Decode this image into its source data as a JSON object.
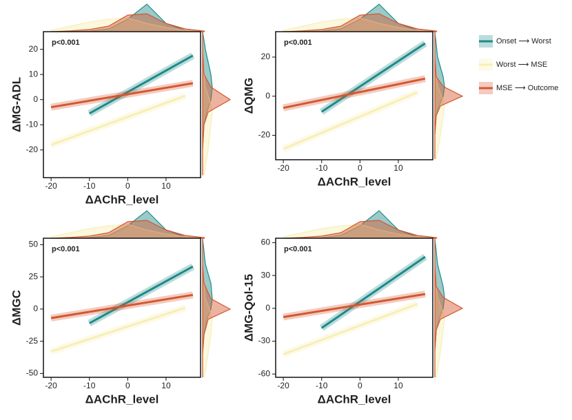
{
  "chart_data": [
    {
      "type": "line",
      "ylabel": "ΔMG-ADL",
      "xlabel": "ΔAChR_level",
      "annotation": "p<0.001",
      "xlim": [
        -22,
        19
      ],
      "xticks": [
        -20,
        -10,
        0,
        10
      ],
      "ylim": [
        -31,
        27
      ],
      "yticks": [
        -20,
        -10,
        0,
        10,
        20
      ],
      "series": [
        {
          "name": "Onset ⟶ Worst",
          "color": "#1e8a88",
          "x": [
            -10,
            17
          ],
          "values": [
            -5.5,
            17.5
          ]
        },
        {
          "name": "Worst ⟶ MSE",
          "color": "#f7efb6",
          "x": [
            -20,
            15
          ],
          "values": [
            -18,
            1.5
          ]
        },
        {
          "name": "MSE ⟶ Outcome",
          "color": "#d4572f",
          "x": [
            -20,
            17
          ],
          "values": [
            -3,
            6.5
          ]
        }
      ],
      "density_x": {
        "grid": [
          -20,
          -15,
          -10,
          -5,
          0,
          5,
          10,
          15,
          20
        ],
        "values": [
          [
            0,
            0,
            0.02,
            0.1,
            0.45,
            1,
            0.3,
            0.05,
            0
          ],
          [
            0.05,
            0.2,
            0.35,
            0.45,
            0.5,
            0.3,
            0.15,
            0.05,
            0
          ],
          [
            0,
            0.03,
            0.08,
            0.2,
            0.6,
            0.65,
            0.3,
            0.1,
            0.02
          ]
        ]
      },
      "density_y": {
        "grid": [
          -30,
          -20,
          -10,
          -5,
          0,
          5,
          10,
          20,
          27
        ],
        "values": [
          [
            0,
            0,
            0.05,
            0.15,
            0.3,
            0.35,
            0.3,
            0.1,
            0
          ],
          [
            0.05,
            0.2,
            0.3,
            0.35,
            0.25,
            0.1,
            0.05,
            0,
            0
          ],
          [
            0,
            0,
            0.05,
            0.2,
            1,
            0.3,
            0.05,
            0,
            0
          ]
        ]
      }
    },
    {
      "type": "line",
      "ylabel": "ΔQMG",
      "xlabel": "ΔAChR_level",
      "annotation": "p<0.001",
      "xlim": [
        -22,
        19
      ],
      "xticks": [
        -20,
        -10,
        0,
        10
      ],
      "ylim": [
        -32.5,
        33
      ],
      "yticks": [
        -20,
        0,
        20
      ],
      "series": [
        {
          "color": "#1e8a88",
          "x": [
            -10,
            17
          ],
          "values": [
            -8,
            27
          ]
        },
        {
          "color": "#f7efb6",
          "x": [
            -20,
            15
          ],
          "values": [
            -27,
            2
          ]
        },
        {
          "color": "#d4572f",
          "x": [
            -20,
            17
          ],
          "values": [
            -6,
            9
          ]
        }
      ],
      "density_x": {
        "grid": [
          -20,
          -15,
          -10,
          -5,
          0,
          5,
          10,
          15,
          20
        ],
        "values": [
          [
            0,
            0,
            0.02,
            0.1,
            0.45,
            1,
            0.3,
            0.05,
            0
          ],
          [
            0.05,
            0.2,
            0.35,
            0.45,
            0.5,
            0.3,
            0.15,
            0.05,
            0
          ],
          [
            0,
            0.03,
            0.08,
            0.2,
            0.6,
            0.65,
            0.3,
            0.1,
            0.02
          ]
        ]
      },
      "density_y": {
        "grid": [
          -32,
          -20,
          -10,
          -5,
          0,
          5,
          10,
          20,
          33
        ],
        "values": [
          [
            0,
            0,
            0.05,
            0.15,
            0.3,
            0.35,
            0.3,
            0.1,
            0
          ],
          [
            0.05,
            0.2,
            0.3,
            0.35,
            0.25,
            0.1,
            0.05,
            0,
            0
          ],
          [
            0,
            0,
            0.05,
            0.2,
            1,
            0.3,
            0.05,
            0,
            0
          ]
        ]
      }
    },
    {
      "type": "line",
      "ylabel": "ΔMGC",
      "xlabel": "ΔAChR_level",
      "annotation": "p<0.001",
      "xlim": [
        -22,
        19
      ],
      "xticks": [
        -20,
        -10,
        0,
        10
      ],
      "ylim": [
        -53,
        55
      ],
      "yticks": [
        -50,
        -25,
        0,
        25,
        50
      ],
      "series": [
        {
          "color": "#1e8a88",
          "x": [
            -10,
            17
          ],
          "values": [
            -11,
            33
          ]
        },
        {
          "color": "#f7efb6",
          "x": [
            -20,
            15
          ],
          "values": [
            -33,
            1
          ]
        },
        {
          "color": "#d4572f",
          "x": [
            -20,
            17
          ],
          "values": [
            -7,
            11
          ]
        }
      ],
      "density_x": {
        "grid": [
          -20,
          -15,
          -10,
          -5,
          0,
          5,
          10,
          15,
          20
        ],
        "values": [
          [
            0,
            0,
            0.02,
            0.1,
            0.45,
            1,
            0.3,
            0.05,
            0
          ],
          [
            0.05,
            0.2,
            0.35,
            0.45,
            0.5,
            0.3,
            0.15,
            0.05,
            0
          ],
          [
            0,
            0.03,
            0.08,
            0.2,
            0.6,
            0.65,
            0.3,
            0.1,
            0.02
          ]
        ]
      },
      "density_y": {
        "grid": [
          -53,
          -35,
          -20,
          -8,
          0,
          8,
          20,
          35,
          55
        ],
        "values": [
          [
            0,
            0,
            0.05,
            0.15,
            0.3,
            0.35,
            0.3,
            0.1,
            0
          ],
          [
            0.05,
            0.2,
            0.3,
            0.35,
            0.25,
            0.1,
            0.05,
            0,
            0
          ],
          [
            0,
            0,
            0.05,
            0.2,
            1,
            0.3,
            0.05,
            0,
            0
          ]
        ]
      }
    },
    {
      "type": "line",
      "ylabel": "ΔMG-Qol-15",
      "xlabel": "ΔAChR_level",
      "annotation": "p<0.001",
      "xlim": [
        -22,
        19
      ],
      "xticks": [
        -20,
        -10,
        0,
        10
      ],
      "ylim": [
        -63,
        64
      ],
      "yticks": [
        -60,
        -30,
        0,
        30,
        60
      ],
      "series": [
        {
          "color": "#1e8a88",
          "x": [
            -10,
            17
          ],
          "values": [
            -18,
            47
          ]
        },
        {
          "color": "#f7efb6",
          "x": [
            -20,
            15
          ],
          "values": [
            -42,
            4
          ]
        },
        {
          "color": "#d4572f",
          "x": [
            -20,
            17
          ],
          "values": [
            -8,
            13
          ]
        }
      ],
      "density_x": {
        "grid": [
          -20,
          -15,
          -10,
          -5,
          0,
          5,
          10,
          15,
          20
        ],
        "values": [
          [
            0,
            0,
            0.02,
            0.1,
            0.45,
            1,
            0.3,
            0.05,
            0
          ],
          [
            0.05,
            0.2,
            0.35,
            0.45,
            0.5,
            0.3,
            0.15,
            0.05,
            0
          ],
          [
            0,
            0.03,
            0.08,
            0.2,
            0.6,
            0.65,
            0.3,
            0.1,
            0.02
          ]
        ]
      },
      "density_y": {
        "grid": [
          -63,
          -40,
          -20,
          -10,
          0,
          10,
          20,
          40,
          64
        ],
        "values": [
          [
            0,
            0,
            0.05,
            0.15,
            0.3,
            0.35,
            0.3,
            0.1,
            0
          ],
          [
            0.05,
            0.2,
            0.3,
            0.35,
            0.25,
            0.1,
            0.05,
            0,
            0
          ],
          [
            0,
            0,
            0.05,
            0.2,
            1,
            0.3,
            0.05,
            0,
            0
          ]
        ]
      }
    }
  ]
}
